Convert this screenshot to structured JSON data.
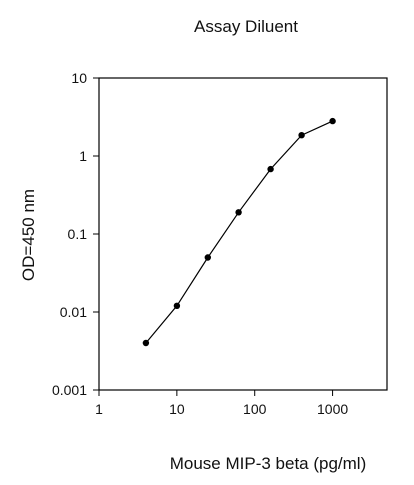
{
  "chart_data": {
    "type": "line",
    "title": "Assay Diluent",
    "xlabel": "Mouse MIP-3 beta (pg/ml)",
    "ylabel": "OD=450 nm",
    "x_scale": "log",
    "y_scale": "log",
    "xlim": [
      1,
      5000
    ],
    "ylim": [
      0.001,
      10
    ],
    "x_ticks": [
      1,
      10,
      100,
      1000
    ],
    "x_tick_labels": [
      "1",
      "10",
      "100",
      "1000"
    ],
    "y_ticks": [
      0.001,
      0.01,
      0.1,
      1,
      10
    ],
    "y_tick_labels": [
      "0.001",
      "0.01",
      "0.1",
      "1",
      "10"
    ],
    "grid": false,
    "series": [
      {
        "x": [
          4,
          10,
          25,
          62,
          160,
          400,
          1000
        ],
        "y": [
          0.004,
          0.012,
          0.05,
          0.19,
          0.68,
          1.85,
          2.8
        ]
      }
    ],
    "colors": {
      "line": "#000000",
      "marker": "#000000",
      "axis": "#000000"
    }
  }
}
